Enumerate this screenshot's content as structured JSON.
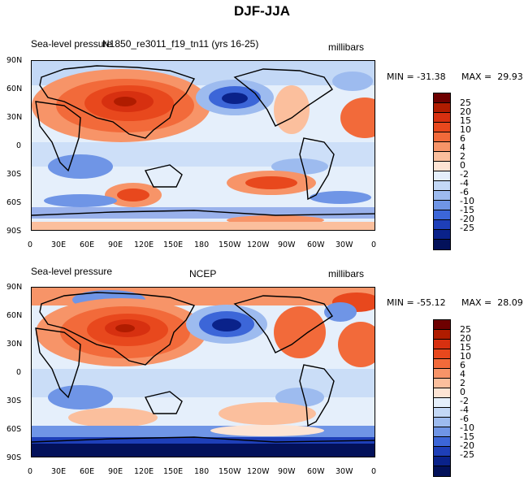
{
  "title": "DJF-JJA",
  "units": "millibars",
  "panels": [
    {
      "id": "model",
      "left_label": "Sea-level pressure",
      "center_label": "N1850_re3011_f19_tn11 (yrs 16-25)",
      "units": "millibars",
      "min_label": "MIN = -31.38",
      "max_label": "MAX =  29.93"
    },
    {
      "id": "obs",
      "left_label": "Sea-level pressure",
      "center_label": "NCEP",
      "units": "millibars",
      "min_label": "MIN = -55.12",
      "max_label": "MAX =  28.09"
    }
  ],
  "lat_ticks": [
    "90N",
    "60N",
    "30N",
    "0",
    "30S",
    "60S",
    "90S"
  ],
  "lon_ticks": [
    "0",
    "30E",
    "60E",
    "90E",
    "120E",
    "150E",
    "180",
    "150W",
    "120W",
    "90W",
    "60W",
    "30W",
    "0"
  ],
  "colorbar": {
    "labels": [
      "25",
      "20",
      "15",
      "10",
      "6",
      "4",
      "2",
      "0",
      "-2",
      "-4",
      "-6",
      "-10",
      "-15",
      "-20",
      "-25"
    ],
    "colors": [
      "#6e0000",
      "#b01c00",
      "#d73010",
      "#e8481d",
      "#f26a3a",
      "#f79468",
      "#fbbf9d",
      "#fde4d4",
      "#e5effb",
      "#c3d8f6",
      "#9dbbef",
      "#6f95e6",
      "#3c66d8",
      "#1e3fb8",
      "#0a228a",
      "#03115a"
    ]
  },
  "colors": {
    "ocean_base": "#e5effb",
    "land_line": "#000000"
  }
}
